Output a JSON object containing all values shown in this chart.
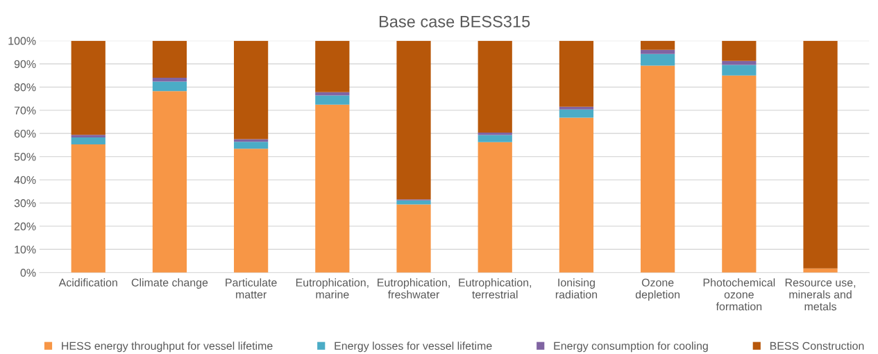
{
  "chart_data": {
    "type": "bar",
    "title": "Base case BESS315",
    "stacked": true,
    "categories": [
      "Acidification",
      "Climate change",
      "Particulate\nmatter",
      "Eutrophication,\nmarine",
      "Eutrophication,\nfreshwater",
      "Eutrophication,\nterrestrial",
      "Ionising\nradiation",
      "Ozone\ndepletion",
      "Photochemical\nozone\nformation",
      "Resource use,\nminerals and\nmetals"
    ],
    "series": [
      {
        "name": "HESS energy throughput for vessel lifetime",
        "color": "#f79646",
        "values": [
          55.3,
          78.3,
          53.4,
          72.4,
          29.4,
          56.3,
          66.8,
          89.3,
          85.0,
          1.8
        ]
      },
      {
        "name": "Energy losses for vessel lifetime",
        "color": "#4bacc6",
        "values": [
          3.0,
          4.1,
          3.0,
          4.0,
          1.7,
          3.0,
          3.5,
          5.0,
          4.6,
          0
        ]
      },
      {
        "name": "Energy consumption for cooling",
        "color": "#8064a2",
        "values": [
          1.1,
          1.6,
          1.1,
          1.4,
          0.5,
          1.1,
          1.2,
          1.8,
          1.7,
          0
        ]
      },
      {
        "name": "BESS Construction",
        "color": "#b7570a",
        "values": [
          40.6,
          16.0,
          42.5,
          22.2,
          68.4,
          39.6,
          28.5,
          3.9,
          8.7,
          98.2
        ]
      }
    ],
    "ylim": [
      0,
      100
    ],
    "yticks": [
      {
        "value": 0,
        "label": "0%"
      },
      {
        "value": 10,
        "label": "10%"
      },
      {
        "value": 20,
        "label": "20%"
      },
      {
        "value": 30,
        "label": "30%"
      },
      {
        "value": 40,
        "label": "40%"
      },
      {
        "value": 50,
        "label": "50%"
      },
      {
        "value": 60,
        "label": "60%"
      },
      {
        "value": 70,
        "label": "70%"
      },
      {
        "value": 80,
        "label": "80%"
      },
      {
        "value": 90,
        "label": "90%"
      },
      {
        "value": 100,
        "label": "100%"
      }
    ],
    "grid": "y",
    "legend": "bottom"
  }
}
